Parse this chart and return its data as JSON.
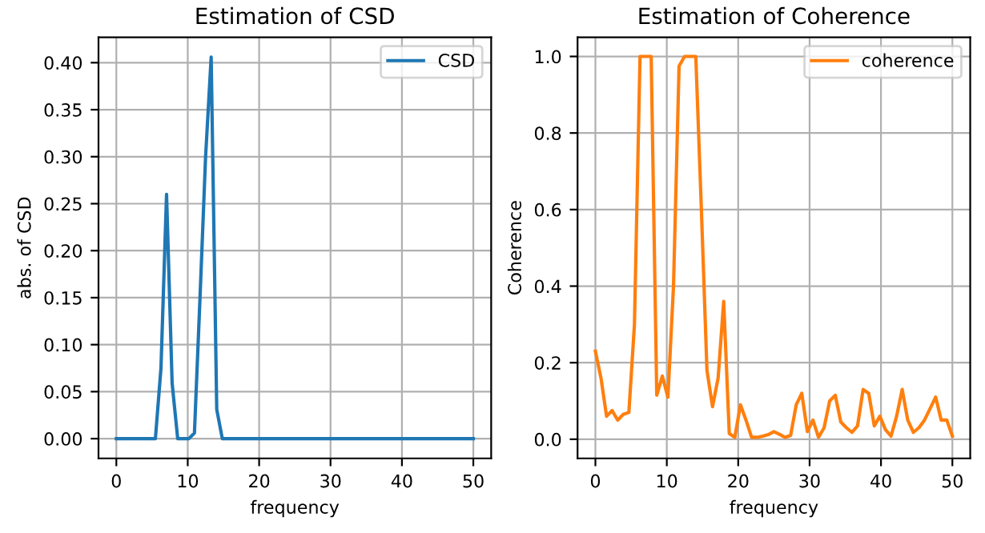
{
  "chart_data": [
    {
      "type": "line",
      "title": "Estimation of CSD",
      "xlabel": "frequency",
      "ylabel": "abs. of CSD",
      "x": [
        0,
        0.78125,
        1.5625,
        2.34375,
        3.125,
        3.90625,
        4.6875,
        5.46875,
        6.25,
        7.03125,
        7.8125,
        8.59375,
        9.375,
        10.15625,
        10.9375,
        11.71875,
        12.5,
        13.28125,
        14.0625,
        14.84375,
        15.625,
        16.40625,
        17.1875,
        17.96875,
        18.75,
        19.53125,
        20.3125,
        21.09375,
        21.875,
        22.65625,
        23.4375,
        24.21875,
        25,
        25.78125,
        26.5625,
        27.34375,
        28.125,
        28.90625,
        29.6875,
        30.46875,
        31.25,
        32.03125,
        32.8125,
        33.59375,
        34.375,
        35.15625,
        35.9375,
        36.71875,
        37.5,
        38.28125,
        39.0625,
        39.84375,
        40.625,
        41.40625,
        42.1875,
        42.96875,
        43.75,
        44.53125,
        45.3125,
        46.09375,
        46.875,
        47.65625,
        48.4375,
        49.21875,
        50
      ],
      "series": [
        {
          "name": "CSD",
          "color": "#1f77b4",
          "values": [
            0,
            0,
            0,
            0,
            0,
            0,
            0,
            0,
            0.075,
            0.26,
            0.059,
            0,
            0,
            0,
            0.006,
            0.15,
            0.3,
            0.406,
            0.031,
            0,
            0,
            0,
            0,
            0,
            0,
            0,
            0,
            0,
            0,
            0,
            0,
            0,
            0,
            0,
            0,
            0,
            0,
            0,
            0,
            0,
            0,
            0,
            0,
            0,
            0,
            0,
            0,
            0,
            0,
            0,
            0,
            0,
            0,
            0,
            0,
            0,
            0,
            0,
            0,
            0,
            0,
            0,
            0,
            0,
            0
          ]
        }
      ],
      "xlim": [
        -2.5,
        52.5
      ],
      "xticks": [
        0,
        10,
        20,
        30,
        40,
        50
      ],
      "ylim": [
        -0.021,
        0.427
      ],
      "yticks": [
        {
          "value": 0,
          "label": "0.00"
        },
        {
          "value": 0.05,
          "label": "0.05"
        },
        {
          "value": 0.1,
          "label": "0.10"
        },
        {
          "value": 0.15,
          "label": "0.15"
        },
        {
          "value": 0.2,
          "label": "0.20"
        },
        {
          "value": 0.25,
          "label": "0.25"
        },
        {
          "value": 0.3,
          "label": "0.30"
        },
        {
          "value": 0.35,
          "label": "0.35"
        },
        {
          "value": 0.4,
          "label": "0.40"
        }
      ],
      "grid": true,
      "legend": "top right"
    },
    {
      "type": "line",
      "title": "Estimation of Coherence",
      "xlabel": "frequency",
      "ylabel": "Coherence",
      "x": [
        0,
        0.78125,
        1.5625,
        2.34375,
        3.125,
        3.90625,
        4.6875,
        5.46875,
        6.25,
        7.03125,
        7.8125,
        8.59375,
        9.375,
        10.15625,
        10.9375,
        11.71875,
        12.5,
        13.28125,
        14.0625,
        14.84375,
        15.625,
        16.40625,
        17.1875,
        17.96875,
        18.75,
        19.53125,
        20.3125,
        21.09375,
        21.875,
        22.65625,
        23.4375,
        24.21875,
        25,
        25.78125,
        26.5625,
        27.34375,
        28.125,
        28.90625,
        29.6875,
        30.46875,
        31.25,
        32.03125,
        32.8125,
        33.59375,
        34.375,
        35.15625,
        35.9375,
        36.71875,
        37.5,
        38.28125,
        39.0625,
        39.84375,
        40.625,
        41.40625,
        42.1875,
        42.96875,
        43.75,
        44.53125,
        45.3125,
        46.09375,
        46.875,
        47.65625,
        48.4375,
        49.21875,
        50
      ],
      "series": [
        {
          "name": "coherence",
          "color": "#ff7f0e",
          "values": [
            0.23,
            0.16,
            0.06,
            0.075,
            0.05,
            0.065,
            0.07,
            0.3,
            1.0,
            1.0,
            1.0,
            0.115,
            0.165,
            0.11,
            0.4,
            0.975,
            1.0,
            1.0,
            1.0,
            0.6,
            0.18,
            0.085,
            0.16,
            0.36,
            0.015,
            0.005,
            0.09,
            0.05,
            0.005,
            0.005,
            0.008,
            0.012,
            0.02,
            0.013,
            0.005,
            0.01,
            0.09,
            0.12,
            0.02,
            0.05,
            0.005,
            0.03,
            0.1,
            0.115,
            0.045,
            0.03,
            0.018,
            0.035,
            0.13,
            0.12,
            0.035,
            0.06,
            0.025,
            0.008,
            0.06,
            0.13,
            0.05,
            0.018,
            0.03,
            0.05,
            0.08,
            0.11,
            0.05,
            0.05,
            0.008
          ]
        }
      ],
      "xlim": [
        -2.5,
        52.5
      ],
      "xticks": [
        0,
        10,
        20,
        30,
        40,
        50
      ],
      "ylim": [
        -0.05,
        1.05
      ],
      "yticks": [
        {
          "value": 0,
          "label": "0.0"
        },
        {
          "value": 0.2,
          "label": "0.2"
        },
        {
          "value": 0.4,
          "label": "0.4"
        },
        {
          "value": 0.6,
          "label": "0.6"
        },
        {
          "value": 0.8,
          "label": "0.8"
        },
        {
          "value": 1.0,
          "label": "1.0"
        }
      ],
      "grid": true,
      "legend": "top right"
    }
  ]
}
